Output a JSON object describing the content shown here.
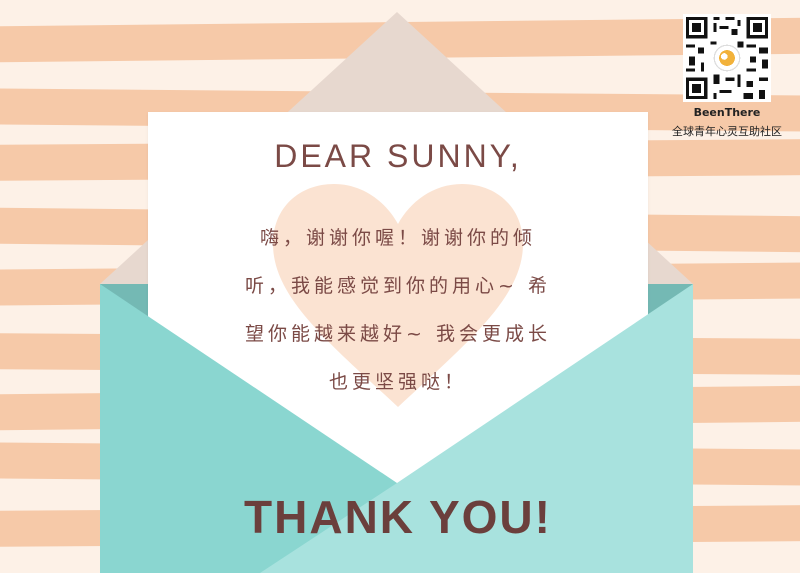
{
  "card": {
    "greeting": "DEAR SUNNY,",
    "message_lines": [
      "嗨，谢谢你喔！谢谢你的倾",
      "听，我能感觉到你的用心~ 希",
      "望你能越来越好~ 我会更成长",
      "也更坚强哒！"
    ],
    "thanks": "THANK YOU!"
  },
  "brand": {
    "name": "BeenThere",
    "tagline": "全球青年心灵互助社区",
    "qr_icon": "qr-code-icon"
  },
  "colors": {
    "background": "#fdf1e7",
    "stripe": "#f6c9a8",
    "envelope_flap_back": "#e7d8cf",
    "envelope_inner": "#74b9b4",
    "envelope_front_left": "#8ad6d0",
    "envelope_front_right": "#a8e2de",
    "heart": "#fbe3d2",
    "text": "#7b4a46",
    "thanks_text": "#6b3f3c"
  }
}
